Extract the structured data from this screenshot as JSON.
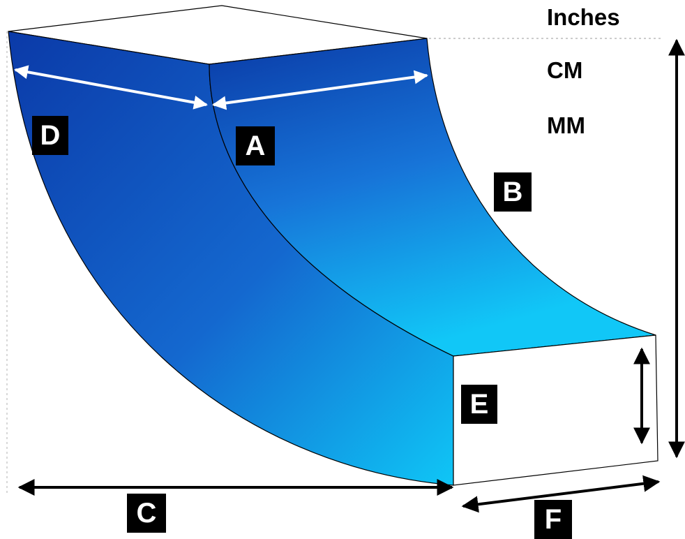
{
  "units": {
    "inches": "Inches",
    "cm": "CM",
    "mm": "MM"
  },
  "dimension_labels": {
    "a": "A",
    "b": "B",
    "c": "C",
    "d": "D",
    "e": "E",
    "f": "F"
  },
  "colors": {
    "duct_dark": "#0b3aa8",
    "duct_mid": "#1173d6",
    "duct_light": "#0fc6f6",
    "outline": "#000000",
    "arrow": "#000000",
    "arrow_on_duct": "#ffffff",
    "label_bg": "#000000",
    "label_text": "#ffffff"
  }
}
